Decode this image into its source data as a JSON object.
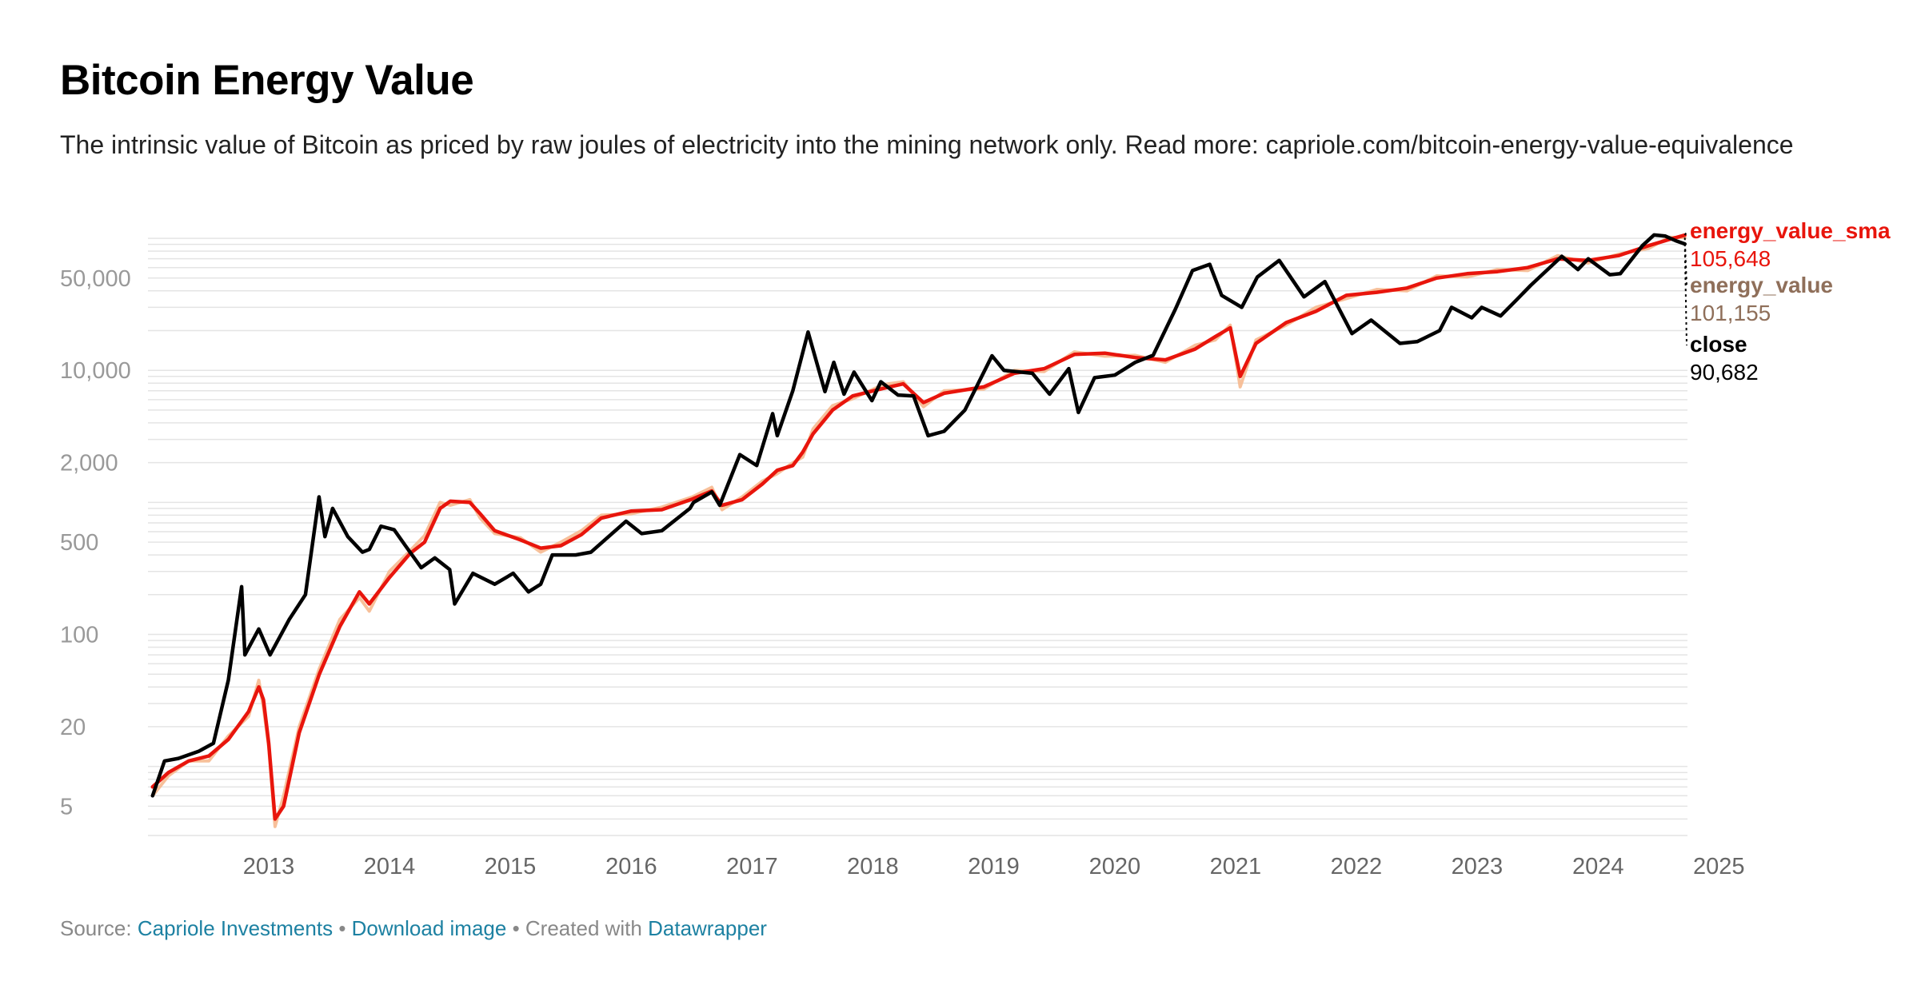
{
  "header": {
    "title": "Bitcoin Energy Value",
    "subtitle": "The intrinsic value of Bitcoin as priced by raw joules of electricity into the mining network only. Read more: capriole.com/bitcoin-energy-value-equivalence"
  },
  "footer": {
    "source_prefix": "Source:",
    "source_link": "Capriole Investments",
    "separator1": "•",
    "download_link": "Download image",
    "separator2": "•",
    "created_prefix": "Created with",
    "created_link": "Datawrapper"
  },
  "colors": {
    "close": "#000000",
    "energy_value_sma": "#e8150c",
    "energy_value": "#f6b98f",
    "energy_value_label": "#8f6f5a",
    "grid": "#e4e4e4",
    "link": "#1d81a2"
  },
  "chart_data": {
    "type": "line",
    "title": "Bitcoin Energy Value",
    "xlabel": "",
    "ylabel": "",
    "yscale": "log",
    "grid": true,
    "legend": "direct labels at right end of lines",
    "xlim": [
      "2012-07-01",
      "2025-03-28"
    ],
    "ylim": [
      3,
      120000
    ],
    "y_ticks": [
      5,
      20,
      100,
      500,
      2000,
      10000,
      50000
    ],
    "y_tick_labels": [
      "5",
      "20",
      "100",
      "500",
      "2,000",
      "10,000",
      "50,000"
    ],
    "x_tick_labels": [
      "2013",
      "2014",
      "2015",
      "2016",
      "2017",
      "2018",
      "2019",
      "2020",
      "2021",
      "2022",
      "2023",
      "2024",
      "2025"
    ],
    "series": [
      {
        "name": "energy_value_sma",
        "last_value_label": "105,648",
        "points": [
          [
            "2012-07-15",
            7
          ],
          [
            "2012-09-01",
            9
          ],
          [
            "2012-11-01",
            11
          ],
          [
            "2013-01-01",
            12
          ],
          [
            "2013-03-01",
            16
          ],
          [
            "2013-05-01",
            26
          ],
          [
            "2013-06-01",
            40
          ],
          [
            "2013-06-15",
            32
          ],
          [
            "2013-07-01",
            15
          ],
          [
            "2013-07-20",
            4
          ],
          [
            "2013-08-15",
            5
          ],
          [
            "2013-10-01",
            18
          ],
          [
            "2013-12-01",
            50
          ],
          [
            "2014-02-01",
            115
          ],
          [
            "2014-04-01",
            210
          ],
          [
            "2014-05-01",
            170
          ],
          [
            "2014-07-01",
            270
          ],
          [
            "2014-09-01",
            410
          ],
          [
            "2014-10-15",
            500
          ],
          [
            "2014-12-01",
            900
          ],
          [
            "2015-01-01",
            1020
          ],
          [
            "2015-03-01",
            1000
          ],
          [
            "2015-04-01",
            820
          ],
          [
            "2015-05-15",
            610
          ],
          [
            "2015-08-01",
            520
          ],
          [
            "2015-10-01",
            450
          ],
          [
            "2015-12-01",
            470
          ],
          [
            "2016-02-01",
            570
          ],
          [
            "2016-04-01",
            760
          ],
          [
            "2016-07-01",
            860
          ],
          [
            "2016-10-01",
            880
          ],
          [
            "2017-01-01",
            1060
          ],
          [
            "2017-03-01",
            1220
          ],
          [
            "2017-04-01",
            950
          ],
          [
            "2017-06-01",
            1050
          ],
          [
            "2017-08-01",
            1380
          ],
          [
            "2017-09-15",
            1750
          ],
          [
            "2017-11-01",
            1900
          ],
          [
            "2017-12-01",
            2400
          ],
          [
            "2018-01-01",
            3300
          ],
          [
            "2018-03-01",
            5000
          ],
          [
            "2018-05-01",
            6400
          ],
          [
            "2018-08-01",
            7300
          ],
          [
            "2018-10-01",
            7900
          ],
          [
            "2018-12-01",
            5700
          ],
          [
            "2019-02-01",
            6700
          ],
          [
            "2019-06-01",
            7500
          ],
          [
            "2019-09-01",
            9500
          ],
          [
            "2019-12-01",
            10300
          ],
          [
            "2020-03-01",
            13200
          ],
          [
            "2020-06-01",
            13500
          ],
          [
            "2020-09-01",
            12500
          ],
          [
            "2020-12-01",
            12000
          ],
          [
            "2021-03-01",
            14500
          ],
          [
            "2021-05-01",
            18000
          ],
          [
            "2021-06-15",
            21000
          ],
          [
            "2021-07-15",
            9000
          ],
          [
            "2021-09-01",
            16000
          ],
          [
            "2021-12-01",
            23000
          ],
          [
            "2022-03-01",
            28000
          ],
          [
            "2022-06-01",
            37000
          ],
          [
            "2022-09-01",
            39000
          ],
          [
            "2022-12-01",
            42000
          ],
          [
            "2023-03-01",
            50000
          ],
          [
            "2023-06-01",
            54000
          ],
          [
            "2023-09-01",
            56000
          ],
          [
            "2023-12-01",
            60000
          ],
          [
            "2024-03-01",
            70000
          ],
          [
            "2024-06-01",
            68000
          ],
          [
            "2024-09-01",
            74000
          ],
          [
            "2024-12-01",
            88000
          ],
          [
            "2025-02-01",
            98000
          ],
          [
            "2025-03-20",
            105648
          ]
        ]
      },
      {
        "name": "energy_value",
        "last_value_label": "101,155",
        "points": [
          [
            "2012-07-15",
            6
          ],
          [
            "2012-09-01",
            8.5
          ],
          [
            "2012-11-01",
            11
          ],
          [
            "2013-01-01",
            11
          ],
          [
            "2013-03-01",
            17
          ],
          [
            "2013-05-01",
            24
          ],
          [
            "2013-06-01",
            45
          ],
          [
            "2013-06-15",
            28
          ],
          [
            "2013-07-01",
            14
          ],
          [
            "2013-07-20",
            3.5
          ],
          [
            "2013-08-15",
            6
          ],
          [
            "2013-10-01",
            20
          ],
          [
            "2013-12-01",
            55
          ],
          [
            "2014-02-01",
            130
          ],
          [
            "2014-04-01",
            190
          ],
          [
            "2014-05-01",
            150
          ],
          [
            "2014-07-01",
            300
          ],
          [
            "2014-09-01",
            430
          ],
          [
            "2014-10-15",
            560
          ],
          [
            "2014-12-01",
            1000
          ],
          [
            "2015-01-01",
            950
          ],
          [
            "2015-03-01",
            1050
          ],
          [
            "2015-04-01",
            760
          ],
          [
            "2015-05-15",
            580
          ],
          [
            "2015-08-01",
            540
          ],
          [
            "2015-10-01",
            420
          ],
          [
            "2015-12-01",
            500
          ],
          [
            "2016-02-01",
            610
          ],
          [
            "2016-04-01",
            800
          ],
          [
            "2016-07-01",
            820
          ],
          [
            "2016-10-01",
            920
          ],
          [
            "2017-01-01",
            1100
          ],
          [
            "2017-03-01",
            1300
          ],
          [
            "2017-04-01",
            880
          ],
          [
            "2017-06-01",
            1100
          ],
          [
            "2017-08-01",
            1450
          ],
          [
            "2017-09-15",
            1650
          ],
          [
            "2017-11-01",
            2000
          ],
          [
            "2017-12-01",
            2200
          ],
          [
            "2018-01-01",
            3600
          ],
          [
            "2018-03-01",
            5400
          ],
          [
            "2018-05-01",
            6100
          ],
          [
            "2018-08-01",
            7800
          ],
          [
            "2018-10-01",
            8200
          ],
          [
            "2018-12-01",
            5300
          ],
          [
            "2019-02-01",
            7000
          ],
          [
            "2019-06-01",
            7200
          ],
          [
            "2019-09-01",
            10000
          ],
          [
            "2019-12-01",
            9800
          ],
          [
            "2020-03-01",
            13800
          ],
          [
            "2020-06-01",
            12800
          ],
          [
            "2020-09-01",
            13000
          ],
          [
            "2020-12-01",
            11500
          ],
          [
            "2021-03-01",
            15500
          ],
          [
            "2021-05-01",
            17000
          ],
          [
            "2021-06-15",
            22000
          ],
          [
            "2021-07-15",
            7500
          ],
          [
            "2021-09-01",
            17000
          ],
          [
            "2021-12-01",
            22000
          ],
          [
            "2022-03-01",
            30000
          ],
          [
            "2022-06-01",
            35000
          ],
          [
            "2022-09-01",
            41000
          ],
          [
            "2022-12-01",
            40000
          ],
          [
            "2023-03-01",
            52000
          ],
          [
            "2023-06-01",
            51000
          ],
          [
            "2023-09-01",
            58000
          ],
          [
            "2023-12-01",
            57000
          ],
          [
            "2024-03-01",
            74000
          ],
          [
            "2024-06-01",
            65000
          ],
          [
            "2024-09-01",
            76000
          ],
          [
            "2024-12-01",
            84000
          ],
          [
            "2025-02-01",
            102000
          ],
          [
            "2025-03-20",
            101155
          ]
        ]
      },
      {
        "name": "close",
        "last_value_label": "90,682",
        "points": [
          [
            "2012-07-15",
            6
          ],
          [
            "2012-08-20",
            11
          ],
          [
            "2012-10-01",
            11.5
          ],
          [
            "2012-12-01",
            13
          ],
          [
            "2013-01-15",
            15
          ],
          [
            "2013-03-01",
            45
          ],
          [
            "2013-04-10",
            230
          ],
          [
            "2013-04-20",
            70
          ],
          [
            "2013-06-01",
            110
          ],
          [
            "2013-07-05",
            70
          ],
          [
            "2013-09-01",
            130
          ],
          [
            "2013-10-20",
            200
          ],
          [
            "2013-11-30",
            1100
          ],
          [
            "2013-12-18",
            550
          ],
          [
            "2014-01-10",
            900
          ],
          [
            "2014-02-25",
            550
          ],
          [
            "2014-04-10",
            420
          ],
          [
            "2014-05-01",
            440
          ],
          [
            "2014-06-05",
            660
          ],
          [
            "2014-07-15",
            620
          ],
          [
            "2014-08-18",
            470
          ],
          [
            "2014-10-05",
            320
          ],
          [
            "2014-11-15",
            380
          ],
          [
            "2014-12-30",
            310
          ],
          [
            "2015-01-14",
            170
          ],
          [
            "2015-03-10",
            290
          ],
          [
            "2015-05-15",
            240
          ],
          [
            "2015-07-10",
            290
          ],
          [
            "2015-08-25",
            210
          ],
          [
            "2015-10-01",
            240
          ],
          [
            "2015-11-05",
            400
          ],
          [
            "2016-01-15",
            400
          ],
          [
            "2016-03-01",
            420
          ],
          [
            "2016-06-15",
            720
          ],
          [
            "2016-08-01",
            580
          ],
          [
            "2016-10-01",
            610
          ],
          [
            "2016-12-25",
            900
          ],
          [
            "2017-01-05",
            1000
          ],
          [
            "2017-03-01",
            1200
          ],
          [
            "2017-03-25",
            950
          ],
          [
            "2017-05-25",
            2300
          ],
          [
            "2017-07-15",
            1900
          ],
          [
            "2017-09-01",
            4700
          ],
          [
            "2017-09-15",
            3200
          ],
          [
            "2017-11-01",
            7000
          ],
          [
            "2017-12-17",
            19500
          ],
          [
            "2018-02-06",
            6900
          ],
          [
            "2018-03-05",
            11500
          ],
          [
            "2018-04-05",
            6600
          ],
          [
            "2018-05-05",
            9700
          ],
          [
            "2018-06-28",
            5900
          ],
          [
            "2018-07-25",
            8200
          ],
          [
            "2018-09-15",
            6500
          ],
          [
            "2018-11-01",
            6400
          ],
          [
            "2018-12-15",
            3200
          ],
          [
            "2019-02-01",
            3450
          ],
          [
            "2019-04-05",
            5000
          ],
          [
            "2019-06-26",
            12900
          ],
          [
            "2019-08-01",
            10000
          ],
          [
            "2019-10-26",
            9500
          ],
          [
            "2019-12-17",
            6600
          ],
          [
            "2020-02-13",
            10300
          ],
          [
            "2020-03-13",
            4800
          ],
          [
            "2020-05-01",
            8800
          ],
          [
            "2020-07-01",
            9200
          ],
          [
            "2020-09-01",
            11500
          ],
          [
            "2020-10-25",
            13000
          ],
          [
            "2020-12-31",
            29000
          ],
          [
            "2021-02-21",
            57000
          ],
          [
            "2021-04-14",
            63500
          ],
          [
            "2021-05-20",
            37000
          ],
          [
            "2021-07-20",
            30000
          ],
          [
            "2021-09-05",
            51000
          ],
          [
            "2021-11-10",
            68000
          ],
          [
            "2022-01-24",
            36000
          ],
          [
            "2022-03-28",
            47000
          ],
          [
            "2022-06-18",
            19000
          ],
          [
            "2022-08-15",
            24000
          ],
          [
            "2022-11-10",
            16000
          ],
          [
            "2023-01-01",
            16500
          ],
          [
            "2023-03-10",
            20000
          ],
          [
            "2023-04-15",
            30000
          ],
          [
            "2023-06-15",
            25000
          ],
          [
            "2023-07-15",
            30000
          ],
          [
            "2023-09-10",
            25800
          ],
          [
            "2023-10-30",
            34500
          ],
          [
            "2023-12-10",
            44000
          ],
          [
            "2024-03-13",
            73000
          ],
          [
            "2024-05-01",
            58000
          ],
          [
            "2024-06-01",
            70000
          ],
          [
            "2024-08-05",
            53000
          ],
          [
            "2024-09-06",
            54000
          ],
          [
            "2024-11-12",
            88000
          ],
          [
            "2024-12-17",
            106000
          ],
          [
            "2025-01-20",
            104000
          ],
          [
            "2025-02-20",
            96000
          ],
          [
            "2025-03-20",
            90682
          ]
        ]
      }
    ]
  }
}
